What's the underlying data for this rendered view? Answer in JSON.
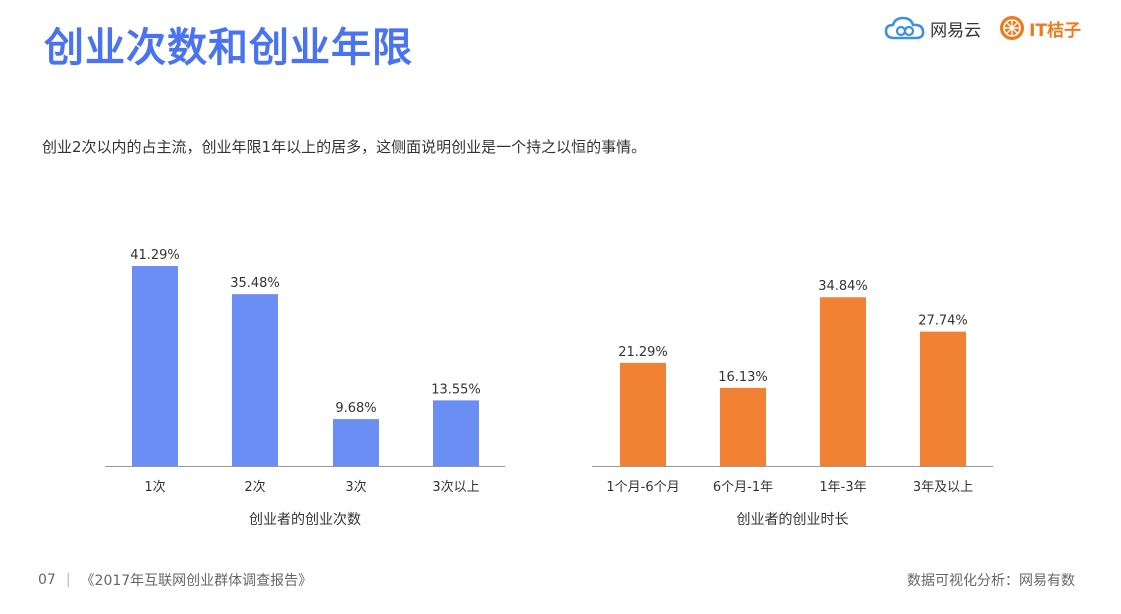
{
  "header": {
    "title": "创业次数和创业年限",
    "subtitle": "创业2次以内的占主流，创业年限1年以上的居多，这侧面说明创业是一个持之以恒的事情。"
  },
  "logos": {
    "netease": "网易云",
    "itjuzi": "IT桔子"
  },
  "footer": {
    "page_num": "07",
    "report": "《2017年互联网创业群体调查报告》",
    "source": "数据可视化分析：网易有数"
  },
  "chart_data": [
    {
      "type": "bar",
      "title": "创业者的创业次数",
      "categories": [
        "1次",
        "2次",
        "3次",
        "3次以上"
      ],
      "values": [
        41.29,
        35.48,
        9.68,
        13.55
      ],
      "labels": [
        "41.29%",
        "35.48%",
        "9.68%",
        "13.55%"
      ],
      "color": "#6b8ef5",
      "ylim": [
        0,
        45
      ]
    },
    {
      "type": "bar",
      "title": "创业者的创业时长",
      "categories": [
        "1个月-6个月",
        "6个月-1年",
        "1年-3年",
        "3年及以上"
      ],
      "values": [
        21.29,
        16.13,
        34.84,
        27.74
      ],
      "labels": [
        "21.29%",
        "16.13%",
        "34.84%",
        "27.74%"
      ],
      "color": "#f28233",
      "ylim": [
        0,
        45
      ]
    }
  ]
}
